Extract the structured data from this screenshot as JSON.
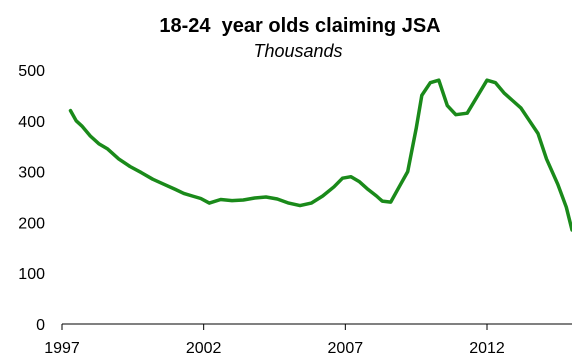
{
  "chart_data": {
    "type": "line",
    "title": "18-24  year olds claiming JSA",
    "subtitle": "Thousands",
    "xlabel": "",
    "ylabel": "",
    "xlim": [
      1997,
      2015.0
    ],
    "ylim": [
      0,
      500
    ],
    "xticks": [
      1997,
      2002,
      2007,
      2012
    ],
    "yticks": [
      0,
      100,
      200,
      300,
      400,
      500
    ],
    "grid": false,
    "legend": "none",
    "color": "#1a8a1a",
    "series": [
      {
        "x": [
          1997.3,
          1997.5,
          1997.7,
          1998.0,
          1998.3,
          1998.6,
          1999.0,
          1999.4,
          1999.8,
          2000.2,
          2000.6,
          2001.0,
          2001.3,
          2001.6,
          2001.9,
          2002.2,
          2002.6,
          2003.0,
          2003.4,
          2003.8,
          2004.2,
          2004.6,
          2005.0,
          2005.4,
          2005.8,
          2006.2,
          2006.6,
          2006.9,
          2007.2,
          2007.5,
          2007.8,
          2008.1,
          2008.3,
          2008.6,
          2008.9,
          2009.2,
          2009.5,
          2009.7,
          2010.0,
          2010.3,
          2010.6,
          2010.9,
          2011.3,
          2011.7,
          2012.0,
          2012.3,
          2012.6,
          2012.9,
          2013.2,
          2013.5,
          2013.8,
          2014.1,
          2014.5,
          2014.8,
          2015.0
        ],
        "y": [
          420,
          400,
          390,
          370,
          355,
          345,
          325,
          310,
          298,
          285,
          275,
          265,
          257,
          252,
          247,
          238,
          245,
          243,
          244,
          248,
          250,
          246,
          238,
          233,
          238,
          252,
          270,
          287,
          290,
          280,
          265,
          252,
          242,
          240,
          270,
          300,
          385,
          450,
          475,
          480,
          430,
          412,
          415,
          452,
          480,
          475,
          455,
          440,
          425,
          400,
          375,
          325,
          275,
          230,
          185
        ]
      }
    ]
  }
}
